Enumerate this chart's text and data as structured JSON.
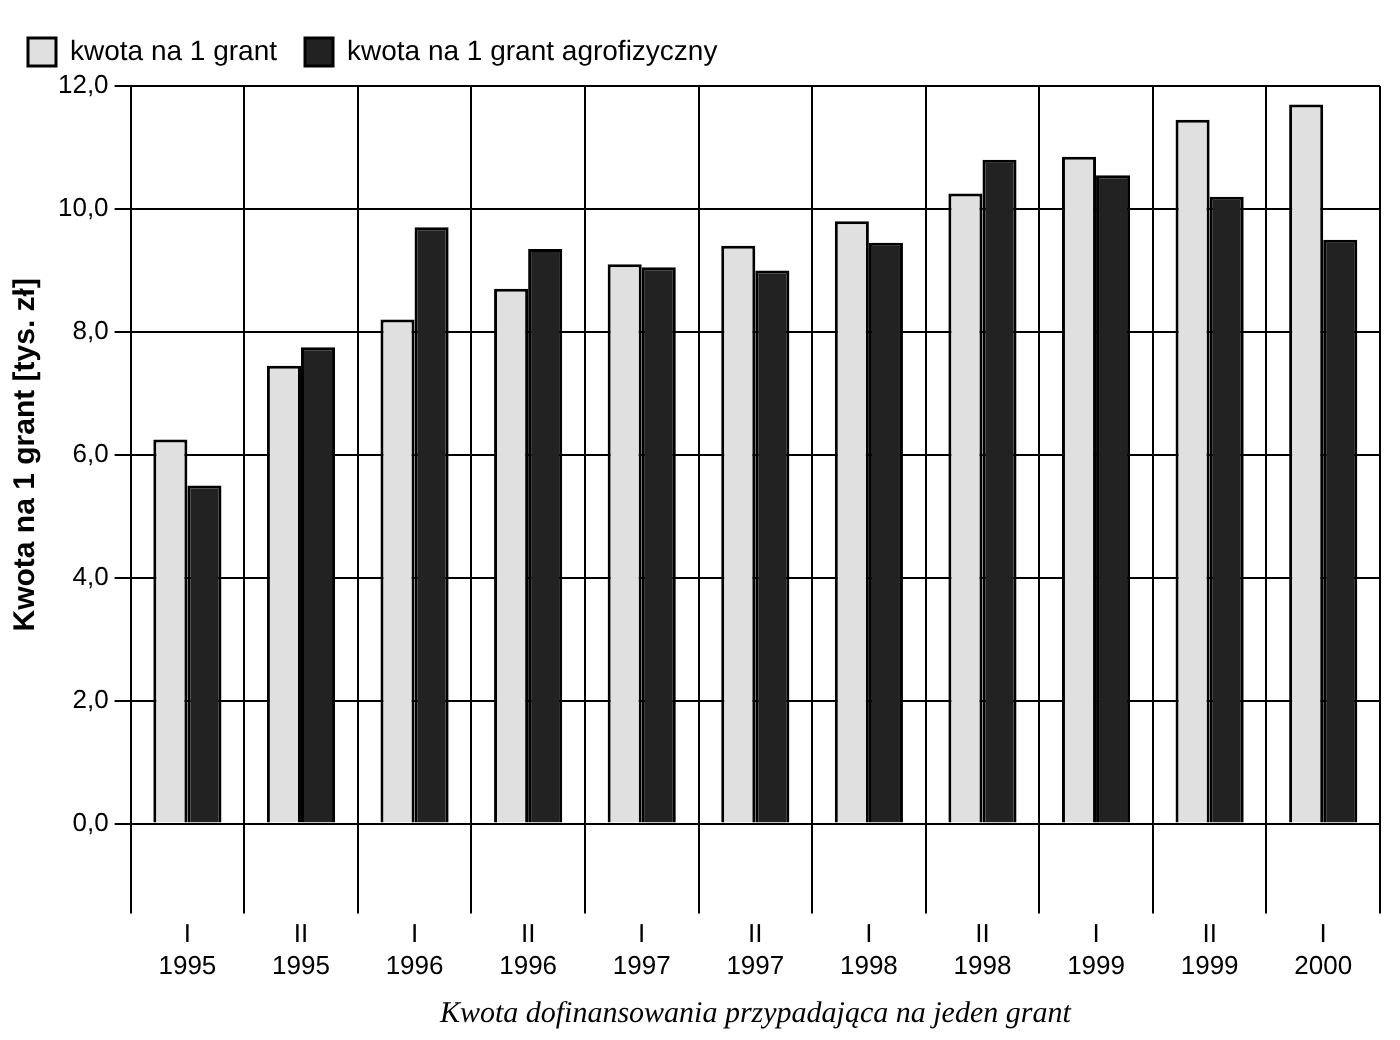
{
  "chart_data": {
    "type": "bar",
    "xlabel": "Kwota dofinansowania przypadająca na jeden grant",
    "ylabel": "Kwota na 1 grant [tys. zł]",
    "categories": [
      "I\n1995",
      "II\n1995",
      "I\n1996",
      "II\n1996",
      "I\n1997",
      "II\n1997",
      "I\n1998",
      "II\n1998",
      "I\n1999",
      "II\n1999",
      "I\n2000"
    ],
    "series": [
      {
        "name": "kwota na 1 grant",
        "color": "#e0e0e0",
        "values": [
          6.25,
          7.45,
          8.2,
          8.7,
          9.1,
          9.4,
          9.8,
          10.25,
          10.85,
          11.45,
          11.7
        ]
      },
      {
        "name": "kwota na 1 grant agrofizyczny",
        "color": "#222222",
        "values": [
          5.5,
          7.75,
          9.7,
          9.35,
          9.05,
          9.0,
          9.45,
          10.8,
          10.55,
          10.2,
          9.5
        ]
      }
    ],
    "ylim": [
      0,
      12
    ],
    "yticks": [
      {
        "value": 0,
        "label": "0,0"
      },
      {
        "value": 2,
        "label": "2,0"
      },
      {
        "value": 4,
        "label": "4,0"
      },
      {
        "value": 6,
        "label": "6,0"
      },
      {
        "value": 8,
        "label": "8,0"
      },
      {
        "value": 10,
        "label": "10,0"
      },
      {
        "value": 12,
        "label": "12,0"
      }
    ],
    "grid": true,
    "legend": "top"
  }
}
